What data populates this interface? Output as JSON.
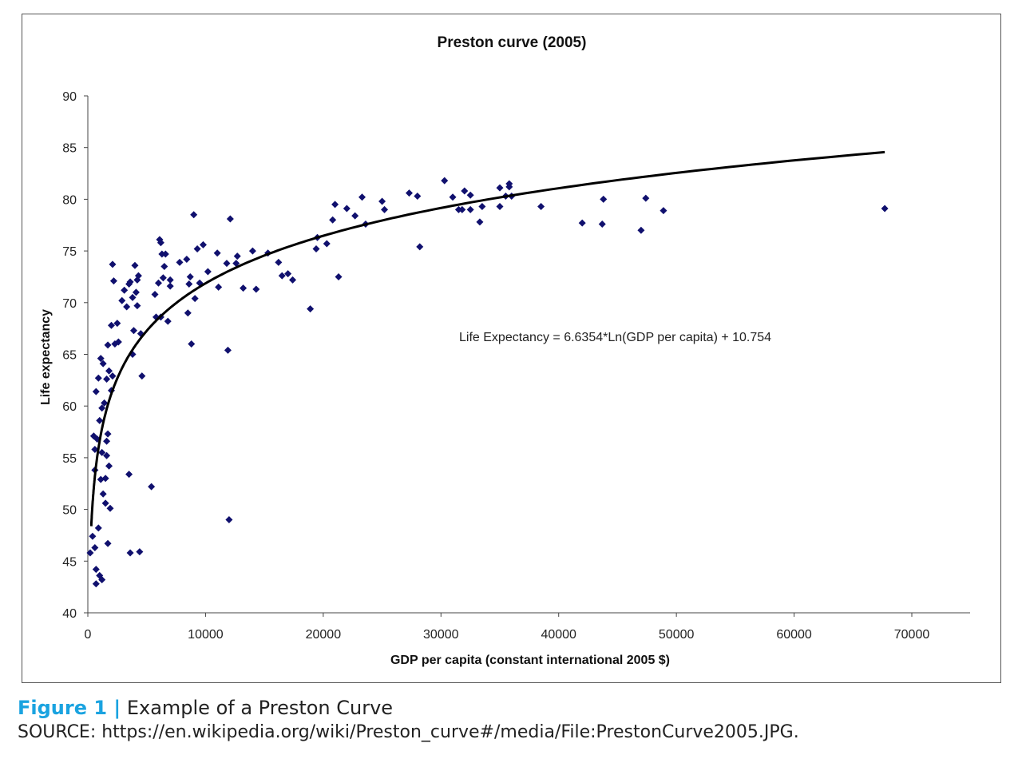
{
  "chart_data": {
    "type": "scatter",
    "title": "Preston curve (2005)",
    "xlabel": "GDP per capita (constant international 2005 $)",
    "ylabel": "Life expectancy",
    "xlim": [
      0,
      75000
    ],
    "ylim": [
      40,
      90
    ],
    "xticks": [
      0,
      10000,
      20000,
      30000,
      40000,
      50000,
      60000,
      70000
    ],
    "yticks": [
      40,
      45,
      50,
      55,
      60,
      65,
      70,
      75,
      80,
      85,
      90
    ],
    "grid": false,
    "trendline": {
      "type": "log",
      "a": 6.6354,
      "b": 10.754,
      "xrange": [
        290,
        67700
      ],
      "label": "Life Expectancy = 6.6354*Ln(GDP per capita) + 10.754"
    },
    "colors": {
      "points": "#10106e",
      "line": "#000000"
    },
    "points": [
      [
        30300,
        81.8
      ],
      [
        31000,
        80.2
      ],
      [
        31500,
        79
      ],
      [
        32000,
        80.8
      ],
      [
        32500,
        80.4
      ],
      [
        32500,
        79
      ],
      [
        31800,
        79
      ],
      [
        33300,
        77.8
      ],
      [
        33500,
        79.3
      ],
      [
        35000,
        79.3
      ],
      [
        35000,
        81.1
      ],
      [
        35500,
        80.3
      ],
      [
        35800,
        81.5
      ],
      [
        35800,
        81.2
      ],
      [
        36000,
        80.3
      ],
      [
        38500,
        79.3
      ],
      [
        42000,
        77.7
      ],
      [
        43700,
        77.6
      ],
      [
        43800,
        80
      ],
      [
        47000,
        77
      ],
      [
        47400,
        80.1
      ],
      [
        48900,
        78.9
      ],
      [
        67700,
        79.1
      ],
      [
        27300,
        80.6
      ],
      [
        28000,
        80.3
      ],
      [
        28200,
        75.4
      ],
      [
        25000,
        79.8
      ],
      [
        25200,
        79
      ],
      [
        23300,
        80.2
      ],
      [
        23600,
        77.6
      ],
      [
        22700,
        78.4
      ],
      [
        22000,
        79.1
      ],
      [
        20800,
        78
      ],
      [
        21000,
        79.5
      ],
      [
        21300,
        72.5
      ],
      [
        19500,
        76.3
      ],
      [
        19400,
        75.2
      ],
      [
        20300,
        75.7
      ],
      [
        18900,
        69.4
      ],
      [
        17400,
        72.2
      ],
      [
        17000,
        72.8
      ],
      [
        16500,
        72.6
      ],
      [
        16200,
        73.9
      ],
      [
        15300,
        74.8
      ],
      [
        14300,
        71.3
      ],
      [
        14000,
        75
      ],
      [
        13200,
        71.4
      ],
      [
        12600,
        73.8
      ],
      [
        12700,
        74.5
      ],
      [
        12100,
        78.1
      ],
      [
        11900,
        65.4
      ],
      [
        12000,
        49
      ],
      [
        11800,
        73.8
      ],
      [
        11000,
        74.8
      ],
      [
        11100,
        71.5
      ],
      [
        10200,
        73
      ],
      [
        9800,
        75.6
      ],
      [
        9500,
        71.9
      ],
      [
        9100,
        70.4
      ],
      [
        9300,
        75.2
      ],
      [
        9000,
        78.5
      ],
      [
        8800,
        66
      ],
      [
        8700,
        72.5
      ],
      [
        8500,
        69
      ],
      [
        8400,
        74.2
      ],
      [
        8600,
        71.8
      ],
      [
        7800,
        73.9
      ],
      [
        7000,
        72.2
      ],
      [
        7000,
        71.6
      ],
      [
        6800,
        68.2
      ],
      [
        6600,
        74.7
      ],
      [
        6500,
        73.5
      ],
      [
        6400,
        72.4
      ],
      [
        6200,
        75.8
      ],
      [
        6100,
        76.1
      ],
      [
        6300,
        74.7
      ],
      [
        6000,
        71.9
      ],
      [
        6200,
        68.6
      ],
      [
        5700,
        70.8
      ],
      [
        5800,
        68.6
      ],
      [
        5400,
        52.2
      ],
      [
        4600,
        62.9
      ],
      [
        4500,
        67
      ],
      [
        4200,
        72.2
      ],
      [
        4000,
        73.6
      ],
      [
        4300,
        72.6
      ],
      [
        4200,
        69.7
      ],
      [
        4100,
        71
      ],
      [
        3900,
        67.3
      ],
      [
        3800,
        65
      ],
      [
        3800,
        70.5
      ],
      [
        3500,
        71.8
      ],
      [
        3300,
        69.6
      ],
      [
        3100,
        71.2
      ],
      [
        2900,
        70.2
      ],
      [
        2600,
        66.2
      ],
      [
        2300,
        66
      ],
      [
        2100,
        73.7
      ],
      [
        2200,
        72.1
      ],
      [
        2500,
        68
      ],
      [
        2000,
        67.8
      ],
      [
        2100,
        62.9
      ],
      [
        2000,
        61.5
      ],
      [
        1700,
        65.9
      ],
      [
        1800,
        63.4
      ],
      [
        1600,
        62.6
      ],
      [
        1300,
        64.1
      ],
      [
        1100,
        64.6
      ],
      [
        900,
        62.7
      ],
      [
        700,
        61.4
      ],
      [
        1400,
        60.3
      ],
      [
        1200,
        59.8
      ],
      [
        1000,
        58.6
      ],
      [
        1700,
        57.3
      ],
      [
        1600,
        56.6
      ],
      [
        500,
        57.1
      ],
      [
        800,
        56.8
      ],
      [
        600,
        55.8
      ],
      [
        1200,
        55.5
      ],
      [
        1600,
        55.2
      ],
      [
        1500,
        53
      ],
      [
        1800,
        54.2
      ],
      [
        1100,
        52.9
      ],
      [
        1300,
        51.5
      ],
      [
        600,
        53.8
      ],
      [
        3500,
        53.4
      ],
      [
        1500,
        50.6
      ],
      [
        1900,
        50.1
      ],
      [
        900,
        48.2
      ],
      [
        400,
        47.4
      ],
      [
        600,
        46.3
      ],
      [
        200,
        45.8
      ],
      [
        1700,
        46.7
      ],
      [
        3600,
        45.8
      ],
      [
        4400,
        45.9
      ],
      [
        700,
        44.2
      ],
      [
        1000,
        43.6
      ],
      [
        1200,
        43.2
      ],
      [
        700,
        42.8
      ],
      [
        3600,
        72
      ]
    ]
  },
  "caption": {
    "figure_label": "Figure 1 |",
    "text": "Example of a Preston Curve",
    "source": "SOURCE: https://en.wikipedia.org/wiki/Preston_curve#/media/File:PrestonCurve2005.JPG."
  }
}
